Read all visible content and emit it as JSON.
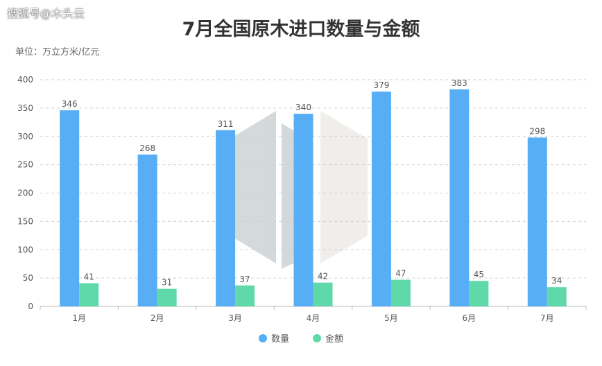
{
  "watermark": "搜狐号@木头云",
  "chart_data": {
    "type": "bar",
    "title": "7月全国原木进口数量与金额",
    "unit_label": "单位：万立方米/亿元",
    "categories": [
      "1月",
      "2月",
      "3月",
      "4月",
      "5月",
      "6月",
      "7月"
    ],
    "series": [
      {
        "name": "数量",
        "values": [
          346,
          268,
          311,
          340,
          379,
          383,
          298
        ],
        "color": "#58AEF5"
      },
      {
        "name": "金额",
        "values": [
          41,
          31,
          37,
          42,
          47,
          45,
          34
        ],
        "color": "#5FD9A9"
      }
    ],
    "ylim": [
      0,
      400
    ],
    "yticks": [
      0,
      50,
      100,
      150,
      200,
      250,
      300,
      350,
      400
    ],
    "grid": true,
    "legend_position": "bottom"
  }
}
